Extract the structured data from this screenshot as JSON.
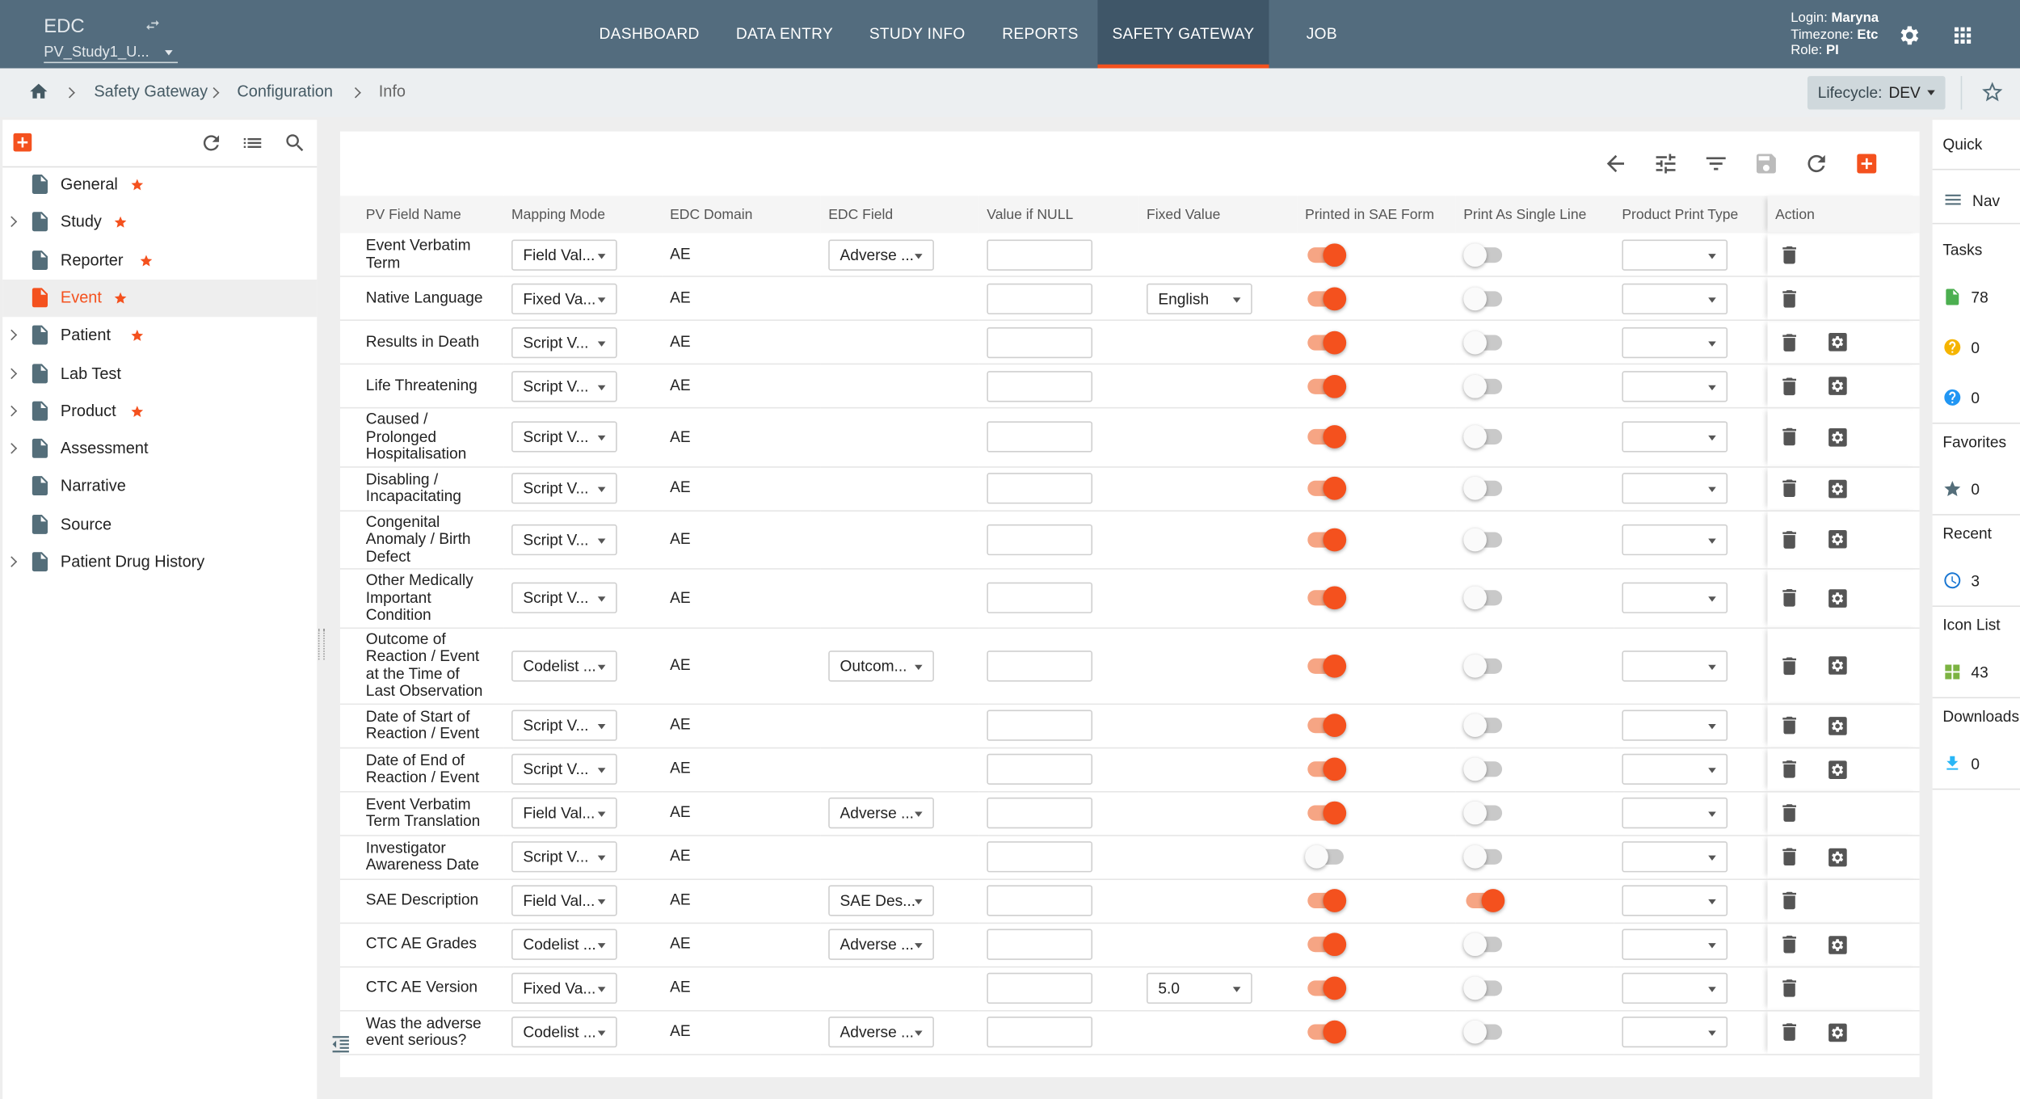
{
  "header": {
    "app": "EDC",
    "study": "PV_Study1_U...",
    "nav": [
      {
        "label": "DASHBOARD",
        "active": false
      },
      {
        "label": "DATA ENTRY",
        "active": false
      },
      {
        "label": "STUDY INFO",
        "active": false
      },
      {
        "label": "REPORTS",
        "active": false
      },
      {
        "label": "SAFETY GATEWAY",
        "active": true
      },
      {
        "label": "JOB",
        "active": false
      }
    ],
    "user": [
      {
        "label": "Login:",
        "value": "Maryna"
      },
      {
        "label": "Timezone:",
        "value": "Etc"
      },
      {
        "label": "Role:",
        "value": "PI"
      }
    ]
  },
  "breadcrumb": [
    "Safety Gateway",
    "Configuration",
    "Info"
  ],
  "lifecycle": {
    "label": "Lifecycle:",
    "value": "DEV"
  },
  "sidebar": [
    {
      "label": "General",
      "expandable": false,
      "starred": true,
      "selected": false
    },
    {
      "label": "Study",
      "expandable": true,
      "starred": true,
      "selected": false
    },
    {
      "label": "Reporter",
      "expandable": false,
      "starred": true,
      "selected": false
    },
    {
      "label": "Event",
      "expandable": false,
      "starred": true,
      "selected": true
    },
    {
      "label": "Patient",
      "expandable": true,
      "starred": true,
      "selected": false
    },
    {
      "label": "Lab Test",
      "expandable": true,
      "starred": false,
      "selected": false
    },
    {
      "label": "Product",
      "expandable": true,
      "starred": true,
      "selected": false
    },
    {
      "label": "Assessment",
      "expandable": true,
      "starred": false,
      "selected": false
    },
    {
      "label": "Narrative",
      "expandable": false,
      "starred": false,
      "selected": false
    },
    {
      "label": "Source",
      "expandable": false,
      "starred": false,
      "selected": false
    },
    {
      "label": "Patient Drug History",
      "expandable": true,
      "starred": false,
      "selected": false
    }
  ],
  "table": {
    "columns": [
      "PV Field Name",
      "Mapping Mode",
      "EDC Domain",
      "EDC Field",
      "Value if NULL",
      "Fixed Value",
      "Printed in SAE Form",
      "Print As Single Line",
      "Product Print Type",
      "Action"
    ],
    "rows": [
      {
        "name": "Event Verbatim Term",
        "mapping": "Field Val...",
        "domain": "AE",
        "edc_field": "Adverse ...",
        "printed": true,
        "single_line": false,
        "settings": false
      },
      {
        "name": "Native Language",
        "mapping": "Fixed Va...",
        "domain": "AE",
        "fixed_value": "English",
        "printed": true,
        "single_line": false,
        "settings": false
      },
      {
        "name": "Results in Death",
        "mapping": "Script V...",
        "domain": "AE",
        "printed": true,
        "single_line": false,
        "settings": true
      },
      {
        "name": "Life Threatening",
        "mapping": "Script V...",
        "domain": "AE",
        "printed": true,
        "single_line": false,
        "settings": true
      },
      {
        "name": "Caused / Prolonged Hospitalisation",
        "mapping": "Script V...",
        "domain": "AE",
        "printed": true,
        "single_line": false,
        "settings": true
      },
      {
        "name": "Disabling / Incapacitating",
        "mapping": "Script V...",
        "domain": "AE",
        "printed": true,
        "single_line": false,
        "settings": true
      },
      {
        "name": "Congenital Anomaly / Birth Defect",
        "mapping": "Script V...",
        "domain": "AE",
        "printed": true,
        "single_line": false,
        "settings": true
      },
      {
        "name": "Other Medically Important Condition",
        "mapping": "Script V...",
        "domain": "AE",
        "printed": true,
        "single_line": false,
        "settings": true
      },
      {
        "name": "Outcome of Reaction / Event at the Time of Last Observation",
        "mapping": "Codelist ...",
        "domain": "AE",
        "edc_field": "Outcom...",
        "printed": true,
        "single_line": false,
        "settings": true
      },
      {
        "name": "Date of Start of Reaction / Event",
        "mapping": "Script V...",
        "domain": "AE",
        "printed": true,
        "single_line": false,
        "settings": true
      },
      {
        "name": "Date of End of Reaction / Event",
        "mapping": "Script V...",
        "domain": "AE",
        "printed": true,
        "single_line": false,
        "settings": true
      },
      {
        "name": "Event Verbatim Term Translation",
        "mapping": "Field Val...",
        "domain": "AE",
        "edc_field": "Adverse ...",
        "printed": true,
        "single_line": false,
        "settings": false
      },
      {
        "name": "Investigator Awareness Date",
        "mapping": "Script V...",
        "domain": "AE",
        "printed": false,
        "single_line": false,
        "settings": true
      },
      {
        "name": "SAE Description",
        "mapping": "Field Val...",
        "domain": "AE",
        "edc_field": "SAE Des...",
        "printed": true,
        "single_line": true,
        "settings": false
      },
      {
        "name": "CTC AE Grades",
        "mapping": "Codelist ...",
        "domain": "AE",
        "edc_field": "Adverse ...",
        "printed": true,
        "single_line": false,
        "settings": true
      },
      {
        "name": "CTC AE Version",
        "mapping": "Fixed Va...",
        "domain": "AE",
        "fixed_value": "5.0",
        "printed": true,
        "single_line": false,
        "settings": false
      },
      {
        "name": "Was the adverse event serious?",
        "mapping": "Codelist ...",
        "domain": "AE",
        "edc_field": "Adverse ...",
        "printed": true,
        "single_line": false,
        "settings": true
      }
    ]
  },
  "right_panel": {
    "quick": "Quick",
    "nav": "Nav",
    "sections": [
      {
        "title": "Tasks",
        "counts": [
          78,
          0,
          0
        ]
      },
      {
        "title": "Favorites",
        "counts": [
          0
        ]
      },
      {
        "title": "Recent",
        "counts": [
          3
        ]
      },
      {
        "title": "Icon List",
        "counts": [
          43
        ]
      },
      {
        "title": "Downloads",
        "counts": [
          0
        ]
      }
    ]
  }
}
